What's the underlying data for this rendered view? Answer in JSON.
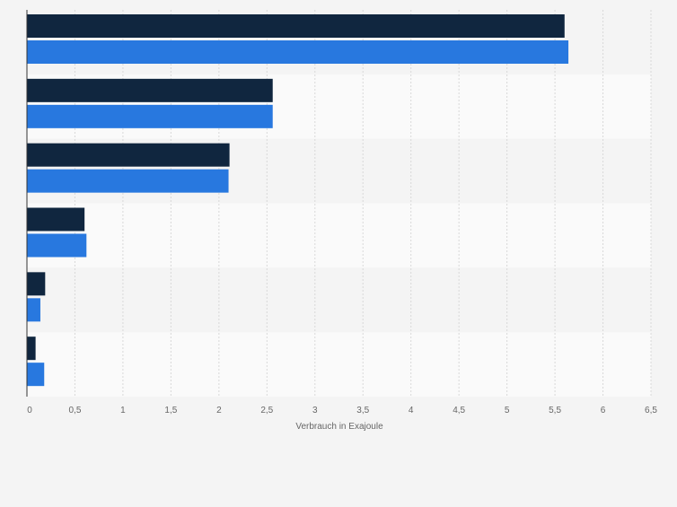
{
  "chart_data": {
    "type": "bar",
    "orientation": "horizontal",
    "categories": [
      "",
      "",
      "",
      "",
      "",
      ""
    ],
    "series": [
      {
        "values": [
          5.6,
          2.56,
          2.11,
          0.6,
          0.19,
          0.09
        ],
        "color": "#10263f"
      },
      {
        "values": [
          5.64,
          2.56,
          2.1,
          0.62,
          0.14,
          0.18
        ],
        "color": "#2878df"
      }
    ],
    "xlabel": "Verbrauch in Exajoule",
    "ylabel": "",
    "xlim": [
      0,
      6.5
    ],
    "xticks": [
      "0",
      "0,5",
      "1",
      "1,5",
      "2",
      "2,5",
      "3",
      "3,5",
      "4",
      "4,5",
      "5",
      "5,5",
      "6",
      "6,5"
    ],
    "grid": true,
    "legend": "none",
    "band_colors": [
      "#f4f4f4",
      "#fafafa"
    ]
  }
}
